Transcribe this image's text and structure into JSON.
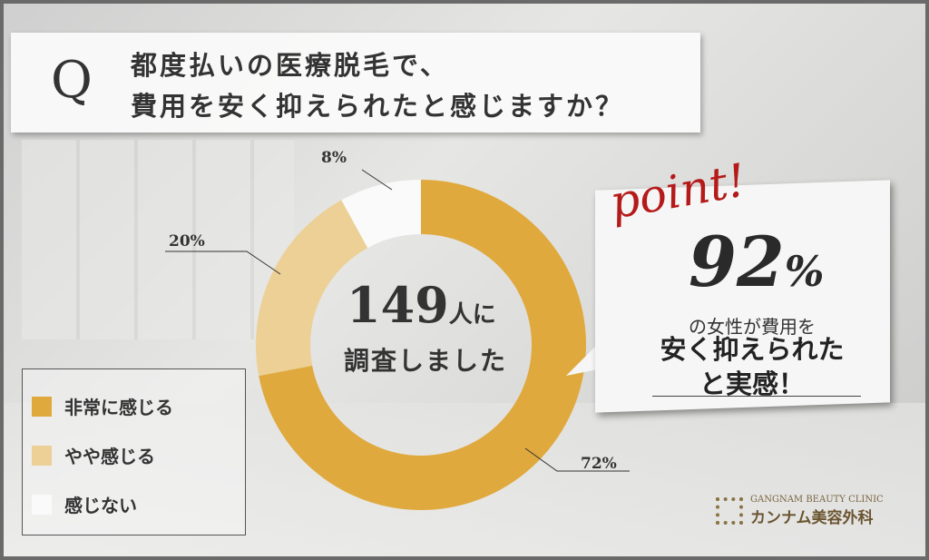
{
  "question": {
    "mark": "Q",
    "lines": [
      "都度払いの医療脱毛で、",
      "費用を安く抑えられたと感じますか？"
    ]
  },
  "chart_data": {
    "type": "pie",
    "donut": true,
    "categories": [
      "非常に感じる",
      "やや感じる",
      "感じない"
    ],
    "values": [
      72,
      20,
      8
    ],
    "labels": [
      "72%",
      "20%",
      "8%"
    ],
    "colors": [
      "#e0a93e",
      "#ecd096",
      "#fafafa"
    ]
  },
  "center": {
    "count": "149",
    "unit": "人に",
    "line2": "調査しました"
  },
  "legend": [
    {
      "label": "非常に感じる"
    },
    {
      "label": "やや感じる"
    },
    {
      "label": "感じない"
    }
  ],
  "point": {
    "word": "point!",
    "number": "92",
    "percent": "%",
    "line1": "の女性が費用を",
    "line2": "安く抑えられた",
    "line3": "と実感！"
  },
  "logo": {
    "en": "GANGNAM BEAUTY CLINIC",
    "jp": "カンナム美容外科"
  }
}
